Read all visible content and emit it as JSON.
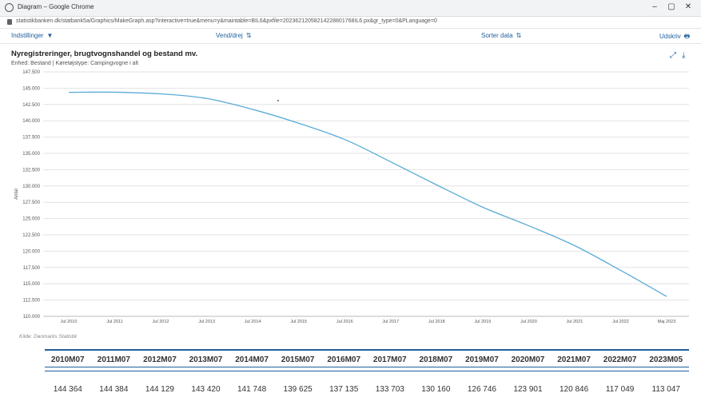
{
  "window": {
    "title": "Diagram – Google Chrome",
    "min": "–",
    "max": "▢",
    "close": "✕"
  },
  "address": {
    "url": "statistikbanken.dk/statbank5a/Graphics/MakeGraph.asp?interactive=true&menu=y&maintable=BIL6&pxfile=20236212058214228801768IL6.px&gr_type=0&PLanguage=0"
  },
  "toolbar": {
    "settings_label": "Indstillinger",
    "pivot_label": "Vend/drej",
    "sort_label": "Sorter data",
    "print_label": "Udskriv"
  },
  "icons": {
    "dropdown": "chevron-down-icon",
    "pivot": "pivot-arrows-icon",
    "sort": "sort-arrows-icon",
    "print": "printer-icon",
    "expand": "expand-icon",
    "download": "download-icon"
  },
  "source": "Kilde: Danmarks Statistik",
  "chart_data": {
    "type": "line",
    "title": "Nyregistreringer, brugtvognshandel og bestand mv.",
    "subtitle": "Enhed: Bestand | Køretøjstype: Campingvogne i alt",
    "ylabel": "Antal",
    "xlabel": "",
    "ylim": [
      110000,
      147500
    ],
    "yticks": [
      110000,
      112500,
      115000,
      117500,
      120000,
      122500,
      125000,
      127500,
      130000,
      132500,
      135000,
      137500,
      140000,
      142500,
      145000,
      147500
    ],
    "ytick_labels": [
      "110.000",
      "112.500",
      "115.000",
      "117.500",
      "120.000",
      "122.500",
      "125.000",
      "127.500",
      "130.000",
      "132.500",
      "135.000",
      "137.500",
      "140.000",
      "142.500",
      "145.000",
      "147.500"
    ],
    "xtick_labels": [
      "Jul 2010",
      "Jul 2011",
      "Jul 2012",
      "Jul 2013",
      "Jul 2014",
      "Jul 2015",
      "Jul 2016",
      "Jul 2017",
      "Jul 2018",
      "Jul 2019",
      "Jul 2020",
      "Jul 2021",
      "Jul 2022",
      "Maj 2023"
    ],
    "grid": true,
    "legend": "none",
    "color": "#5aabd6",
    "table_headers": [
      "2010M07",
      "2011M07",
      "2012M07",
      "2013M07",
      "2014M07",
      "2015M07",
      "2016M07",
      "2017M07",
      "2018M07",
      "2019M07",
      "2020M07",
      "2021M07",
      "2022M07",
      "2023M05"
    ],
    "table_values": [
      "144 364",
      "144 384",
      "144 129",
      "143 420",
      "141 748",
      "139 625",
      "137 135",
      "133 703",
      "130 160",
      "126 746",
      "123 901",
      "120 846",
      "117 049",
      "113 047"
    ],
    "values": [
      144364,
      144384,
      144129,
      143420,
      141748,
      139625,
      137135,
      133703,
      130160,
      126746,
      123901,
      120846,
      117049,
      113047
    ]
  }
}
